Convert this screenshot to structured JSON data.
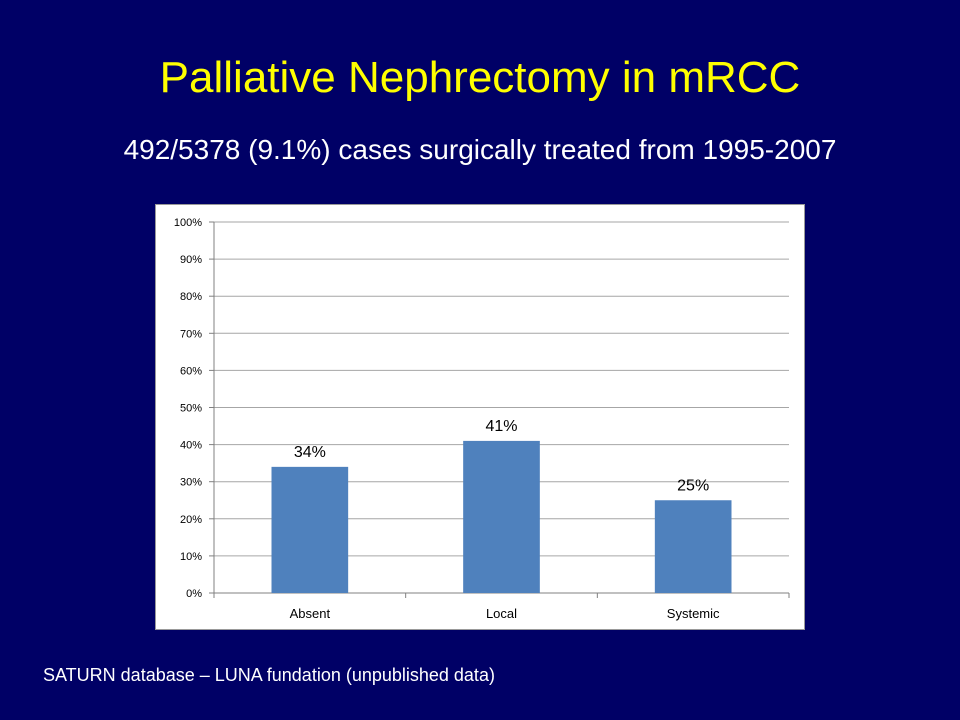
{
  "slide": {
    "title": "Palliative Nephrectomy in mRCC",
    "subtitle": "492/5378 (9.1%) cases surgically treated from 1995-2007",
    "footer": "SATURN database – LUNA fundation (unpublished data)"
  },
  "colors": {
    "background": "#000066",
    "title": "#FFFF00",
    "bar": "#4F81BD",
    "grid": "#A6A6A6"
  },
  "chart_data": {
    "type": "bar",
    "categories": [
      "Absent",
      "Local",
      "Systemic"
    ],
    "values": [
      34,
      41,
      25
    ],
    "data_labels": [
      "34%",
      "41%",
      "25%"
    ],
    "yticks": [
      "0%",
      "10%",
      "20%",
      "30%",
      "40%",
      "50%",
      "60%",
      "70%",
      "80%",
      "90%",
      "100%"
    ],
    "ylim": [
      0,
      100
    ],
    "grid": true,
    "legend": "none"
  }
}
